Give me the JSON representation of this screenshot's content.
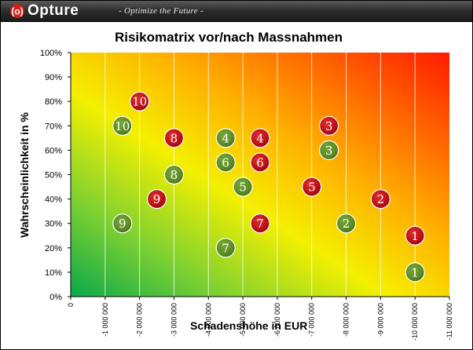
{
  "header": {
    "brand": "Opture",
    "tagline": "- Optimize the Future -",
    "logo_icon": "opture-logo-icon"
  },
  "chart_data": {
    "type": "scatter",
    "title": "Risikomatrix vor/nach Massnahmen",
    "xlabel": "Schadenshöhe in EUR",
    "ylabel": "Wahrscheinlichkeit in %",
    "xlim": [
      0,
      -11000000
    ],
    "ylim": [
      0,
      100
    ],
    "x_ticks": [
      "0",
      "-1 000 000",
      "-2 000 000",
      "-3 000 000",
      "-4 000 000",
      "-5 000 000",
      "-6 000 000",
      "-7 000 000",
      "-8 000 000",
      "-9 000 000",
      "-10 000 000",
      "-11 000 000"
    ],
    "y_ticks": [
      "0%",
      "10%",
      "20%",
      "30%",
      "40%",
      "50%",
      "60%",
      "70%",
      "80%",
      "90%",
      "100%"
    ],
    "grid": true,
    "background": "gradient from green (bottom-left) through yellow to red (top-right)",
    "colors": {
      "vor": "#c0141b",
      "nach": "#5a8a23"
    },
    "series": [
      {
        "values": [
          {
            "label": "1",
            "x": -10000000,
            "y": 25
          },
          {
            "label": "2",
            "x": -9000000,
            "y": 40
          },
          {
            "label": "3",
            "x": -7500000,
            "y": 70
          },
          {
            "label": "5",
            "x": -7000000,
            "y": 45
          },
          {
            "label": "4",
            "x": -5500000,
            "y": 65
          },
          {
            "label": "6",
            "x": -5500000,
            "y": 55
          },
          {
            "label": "7",
            "x": -5500000,
            "y": 30
          },
          {
            "label": "8",
            "x": -3000000,
            "y": 65
          },
          {
            "label": "9",
            "x": -2500000,
            "y": 40
          },
          {
            "label": "10",
            "x": -2000000,
            "y": 80
          }
        ]
      },
      {
        "values": [
          {
            "label": "1",
            "x": -10000000,
            "y": 10
          },
          {
            "label": "2",
            "x": -8000000,
            "y": 30
          },
          {
            "label": "3",
            "x": -7500000,
            "y": 60
          },
          {
            "label": "5",
            "x": -5000000,
            "y": 45
          },
          {
            "label": "4",
            "x": -4500000,
            "y": 65
          },
          {
            "label": "6",
            "x": -4500000,
            "y": 55
          },
          {
            "label": "7",
            "x": -4500000,
            "y": 20
          },
          {
            "label": "8",
            "x": -3000000,
            "y": 50
          },
          {
            "label": "9",
            "x": -1500000,
            "y": 30
          },
          {
            "label": "10",
            "x": -1500000,
            "y": 70
          }
        ]
      }
    ]
  }
}
